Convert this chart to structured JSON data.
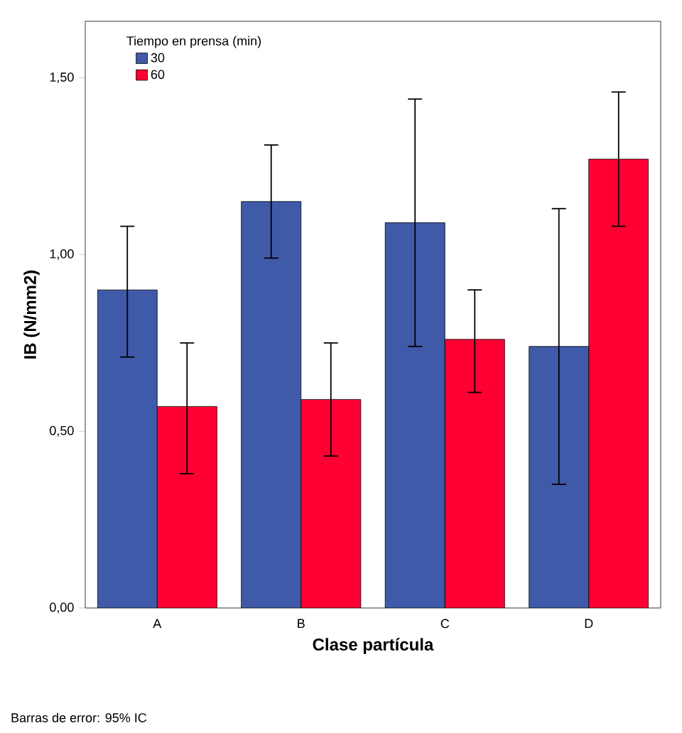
{
  "chart_data": {
    "type": "bar",
    "xlabel": "Clase partícula",
    "ylabel": "IB (N/mm2)",
    "legend_title": "Tiempo en prensa (min)",
    "legend": "top left",
    "categories": [
      "A",
      "B",
      "C",
      "D"
    ],
    "series": [
      {
        "name": "30",
        "color": "#3f5aa9",
        "values": [
          0.9,
          1.15,
          1.09,
          0.74
        ],
        "errors": [
          [
            0.71,
            1.08
          ],
          [
            0.99,
            1.31
          ],
          [
            0.74,
            1.44
          ],
          [
            0.35,
            1.13
          ]
        ]
      },
      {
        "name": "60",
        "color": "#ff0033",
        "values": [
          0.57,
          0.59,
          0.76,
          1.27
        ],
        "errors": [
          [
            0.38,
            0.75
          ],
          [
            0.43,
            0.75
          ],
          [
            0.61,
            0.9
          ],
          [
            1.08,
            1.46
          ]
        ]
      }
    ],
    "ylim": [
      0,
      1.66
    ],
    "yticks": [
      {
        "value": 0,
        "label": "0,00"
      },
      {
        "value": 0.5,
        "label": "0,50"
      },
      {
        "value": 1,
        "label": "1,00"
      },
      {
        "value": 1.5,
        "label": "1,50"
      }
    ],
    "annotations": [
      "Barras de error: 95% IC"
    ]
  }
}
